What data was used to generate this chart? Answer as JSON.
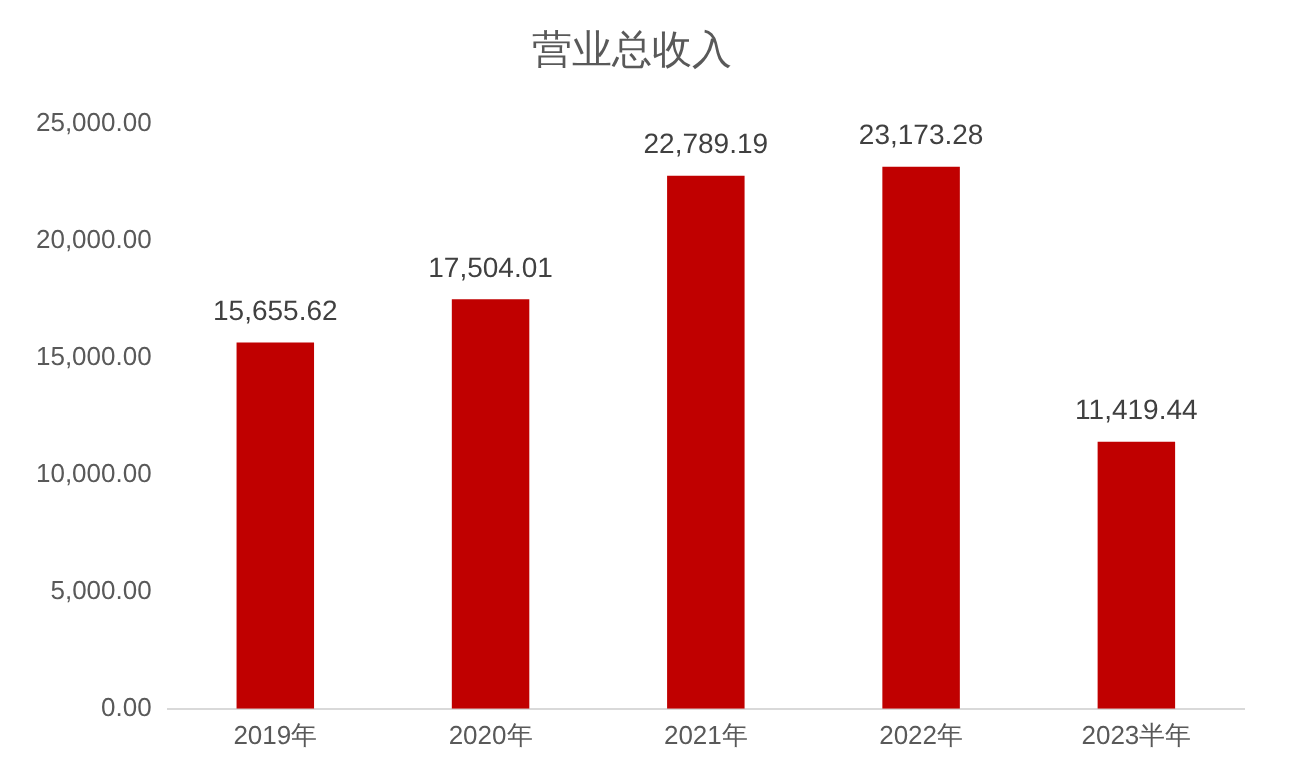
{
  "chart_data": {
    "type": "bar",
    "title": "营业总收入",
    "categories": [
      "2019年",
      "2020年",
      "2021年",
      "2022年",
      "2023半年"
    ],
    "values": [
      15655.62,
      17504.01,
      22789.19,
      23173.28,
      11419.44
    ],
    "value_labels": [
      "15,655.62",
      "17,504.01",
      "22,789.19",
      "23,173.28",
      "11,419.44"
    ],
    "color": "#c00000",
    "ylim": [
      0,
      25000
    ],
    "yticks": [
      {
        "value": 0,
        "label": "0.00"
      },
      {
        "value": 5000,
        "label": "5,000.00"
      },
      {
        "value": 10000,
        "label": "10,000.00"
      },
      {
        "value": 15000,
        "label": "15,000.00"
      },
      {
        "value": 20000,
        "label": "20,000.00"
      },
      {
        "value": 25000,
        "label": "25,000.00"
      }
    ],
    "grid": false,
    "legend": false
  }
}
